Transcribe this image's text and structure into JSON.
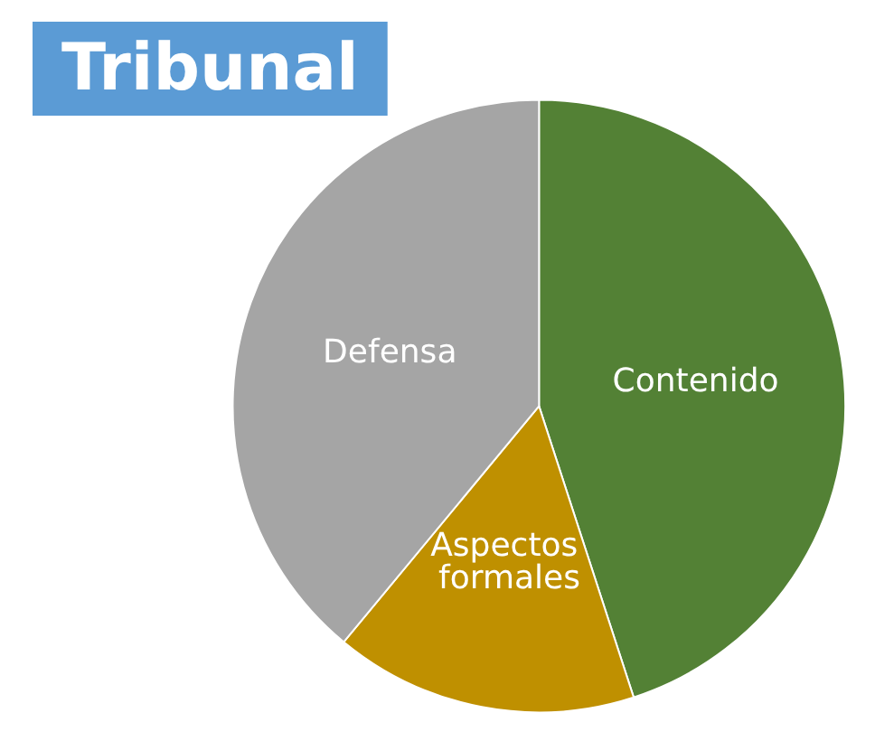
{
  "chart_data": {
    "type": "pie",
    "title": "Tribunal",
    "categories": [
      "Contenido",
      "Aspectos formales",
      "Defensa"
    ],
    "values": [
      45,
      16,
      39
    ],
    "colors": [
      "#538135",
      "#bf9000",
      "#a5a5a5"
    ],
    "legend": false
  }
}
